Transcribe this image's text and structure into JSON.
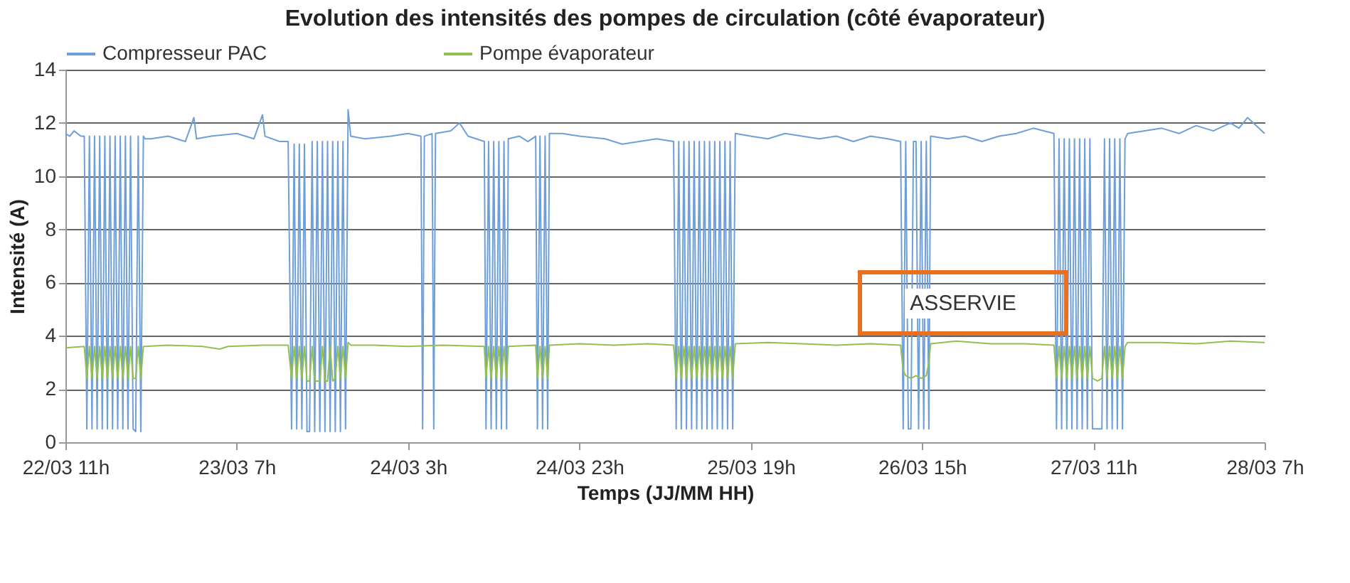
{
  "chart_data": {
    "type": "line",
    "title": "Evolution des intensités des pompes de circulation (côté  évaporateur)",
    "xlabel": "Temps (JJ/MM HH)",
    "ylabel": "Intensité (A)",
    "xlim": [
      "--03-22T11:00",
      "--03-28T07:00"
    ],
    "xticks": [
      {
        "value": "--03-22T11:00",
        "label": "22/03 11h"
      },
      {
        "value": "--03-23T07:00",
        "label": "23/03 7h"
      },
      {
        "value": "--03-24T03:00",
        "label": "24/03 3h"
      },
      {
        "value": "--03-24T23:00",
        "label": "24/03 23h"
      },
      {
        "value": "--03-25T19:00",
        "label": "25/03 19h"
      },
      {
        "value": "--03-26T15:00",
        "label": "26/03 15h"
      },
      {
        "value": "--03-27T11:00",
        "label": "27/03 11h"
      },
      {
        "value": "--03-28T07:00",
        "label": "28/03 7h"
      }
    ],
    "ylim": [
      0,
      14
    ],
    "yticks": [
      0,
      2,
      4,
      6,
      8,
      10,
      12,
      14
    ],
    "grid": "y",
    "legend": "top",
    "marker": "none",
    "line_style": "solid",
    "annotations": [
      "ASSERVIE"
    ],
    "series": [
      {
        "name": "Compresseur PAC",
        "color": "#6f9fd8",
        "x": [
          "--03-22T11:00",
          "--03-22T11:30",
          "--03-22T12:00",
          "--03-22T12:48",
          "--03-22T13:12",
          "--03-22T13:30",
          "--03-22T13:48",
          "--03-22T14:06",
          "--03-22T14:24",
          "--03-22T14:42",
          "--03-22T15:00",
          "--03-22T15:18",
          "--03-22T15:36",
          "--03-22T15:54",
          "--03-22T16:12",
          "--03-22T16:30",
          "--03-22T16:48",
          "--03-22T17:06",
          "--03-22T17:24",
          "--03-22T17:42",
          "--03-22T18:00",
          "--03-22T18:18",
          "--03-22T18:36",
          "--03-22T18:54",
          "--03-22T19:12",
          "--03-22T19:30",
          "--03-22T19:48",
          "--03-22T20:06",
          "--03-22T20:18",
          "--03-22T21:00",
          "--03-22T23:00",
          "--03-23T01:00",
          "--03-23T02:00",
          "--03-23T02:18",
          "--03-23T04:00",
          "--03-23T07:00",
          "--03-23T09:00",
          "--03-23T10:00",
          "--03-23T10:18",
          "--03-23T12:00",
          "--03-23T13:00",
          "--03-23T13:24",
          "--03-23T13:42",
          "--03-23T14:00",
          "--03-23T14:18",
          "--03-23T14:36",
          "--03-23T14:54",
          "--03-23T15:12",
          "--03-23T15:30",
          "--03-23T15:48",
          "--03-23T16:06",
          "--03-23T16:24",
          "--03-23T16:42",
          "--03-23T17:00",
          "--03-23T17:18",
          "--03-23T17:36",
          "--03-23T17:54",
          "--03-23T18:12",
          "--03-23T18:30",
          "--03-23T18:48",
          "--03-23T19:06",
          "--03-23T19:24",
          "--03-23T19:42",
          "--03-23T20:00",
          "--03-23T20:18",
          "--03-23T22:00",
          "--03-24T01:00",
          "--03-24T03:00",
          "--03-24T04:30",
          "--03-24T04:42",
          "--03-24T04:54",
          "--03-24T05:48",
          "--03-24T06:00",
          "--03-24T06:12",
          "--03-24T08:00",
          "--03-24T09:00",
          "--03-24T10:00",
          "--03-24T11:54",
          "--03-24T12:06",
          "--03-24T12:24",
          "--03-24T12:42",
          "--03-24T13:00",
          "--03-24T13:18",
          "--03-24T13:36",
          "--03-24T13:54",
          "--03-24T14:12",
          "--03-24T14:30",
          "--03-24T14:42",
          "--03-24T16:00",
          "--03-24T17:00",
          "--03-24T17:54",
          "--03-24T18:06",
          "--03-24T18:24",
          "--03-24T18:42",
          "--03-24T19:00",
          "--03-24T19:18",
          "--03-24T19:30",
          "--03-24T21:00",
          "--03-24T23:00",
          "--03-25T02:00",
          "--03-25T04:00",
          "--03-25T06:00",
          "--03-25T08:00",
          "--03-25T10:00",
          "--03-25T10:18",
          "--03-25T10:36",
          "--03-25T10:54",
          "--03-25T11:12",
          "--03-25T11:30",
          "--03-25T11:48",
          "--03-25T12:06",
          "--03-25T12:24",
          "--03-25T12:42",
          "--03-25T13:00",
          "--03-25T13:18",
          "--03-25T13:36",
          "--03-25T13:54",
          "--03-25T14:12",
          "--03-25T14:30",
          "--03-25T14:48",
          "--03-25T15:06",
          "--03-25T15:24",
          "--03-25T15:42",
          "--03-25T16:00",
          "--03-25T16:18",
          "--03-25T16:36",
          "--03-25T16:54",
          "--03-25T17:12",
          "--03-25T19:00",
          "--03-25T21:00",
          "--03-25T23:00",
          "--03-26T01:00",
          "--03-26T03:00",
          "--03-26T05:00",
          "--03-26T07:00",
          "--03-26T09:00",
          "--03-26T11:00",
          "--03-26T12:30",
          "--03-26T12:48",
          "--03-26T13:06",
          "--03-26T13:24",
          "--03-26T13:42",
          "--03-26T14:00",
          "--03-26T14:18",
          "--03-26T14:36",
          "--03-26T14:54",
          "--03-26T15:12",
          "--03-26T15:30",
          "--03-26T15:48",
          "--03-26T16:00",
          "--03-26T18:00",
          "--03-26T20:00",
          "--03-26T22:00",
          "--03-27T00:00",
          "--03-27T02:00",
          "--03-27T04:00",
          "--03-27T06:24",
          "--03-27T06:42",
          "--03-27T07:00",
          "--03-27T07:18",
          "--03-27T07:36",
          "--03-27T07:54",
          "--03-27T08:12",
          "--03-27T08:30",
          "--03-27T08:48",
          "--03-27T09:06",
          "--03-27T09:24",
          "--03-27T09:42",
          "--03-27T10:00",
          "--03-27T10:18",
          "--03-27T10:36",
          "--03-27T10:54",
          "--03-27T11:30",
          "--03-27T12:00",
          "--03-27T12:18",
          "--03-27T12:36",
          "--03-27T12:54",
          "--03-27T13:12",
          "--03-27T13:30",
          "--03-27T13:48",
          "--03-27T14:06",
          "--03-27T14:24",
          "--03-27T14:42",
          "--03-27T15:00",
          "--03-27T17:00",
          "--03-27T19:00",
          "--03-27T21:00",
          "--03-27T23:00",
          "--03-28T01:00",
          "--03-28T03:00",
          "--03-28T04:00",
          "--03-28T05:00",
          "--03-28T07:00"
        ],
        "values": [
          11.6,
          11.5,
          11.7,
          11.5,
          11.5,
          0.5,
          11.5,
          0.5,
          11.5,
          0.5,
          11.5,
          0.5,
          11.5,
          0.5,
          11.5,
          0.5,
          11.5,
          0.5,
          11.5,
          0.5,
          11.5,
          0.5,
          11.5,
          0.5,
          0.4,
          11.5,
          0.4,
          11.5,
          11.4,
          11.4,
          11.5,
          11.3,
          12.2,
          11.4,
          11.5,
          11.6,
          11.4,
          12.3,
          11.5,
          11.3,
          11.3,
          0.5,
          11.2,
          0.5,
          11.2,
          0.5,
          11.2,
          0.4,
          0.4,
          11.3,
          0.4,
          11.3,
          0.4,
          11.3,
          0.4,
          11.3,
          0.4,
          11.3,
          0.4,
          11.3,
          0.4,
          11.3,
          0.5,
          12.5,
          11.5,
          11.4,
          11.5,
          11.6,
          11.5,
          0.5,
          11.5,
          11.6,
          0.5,
          11.6,
          11.7,
          12.0,
          11.5,
          11.3,
          0.5,
          11.3,
          0.5,
          11.3,
          0.5,
          11.3,
          0.5,
          11.3,
          0.5,
          11.4,
          11.5,
          11.3,
          11.5,
          0.5,
          11.5,
          0.5,
          11.5,
          0.5,
          11.6,
          11.6,
          11.5,
          11.4,
          11.2,
          11.3,
          11.4,
          11.3,
          0.5,
          11.3,
          0.5,
          11.3,
          0.5,
          11.3,
          0.5,
          11.3,
          0.5,
          11.3,
          0.5,
          11.3,
          0.5,
          11.3,
          0.5,
          11.3,
          0.5,
          11.3,
          0.5,
          11.3,
          0.5,
          11.3,
          0.5,
          11.6,
          11.5,
          11.4,
          11.6,
          11.5,
          11.4,
          11.5,
          11.3,
          11.5,
          11.4,
          11.3,
          0.5,
          11.3,
          0.5,
          0.5,
          11.3,
          11.3,
          0.5,
          11.3,
          0.5,
          11.3,
          0.5,
          11.5,
          11.4,
          11.5,
          11.3,
          11.5,
          11.6,
          11.8,
          11.6,
          0.5,
          11.4,
          0.5,
          11.4,
          0.5,
          11.4,
          0.5,
          11.4,
          0.5,
          11.4,
          0.5,
          11.4,
          0.5,
          11.4,
          0.5,
          0.5,
          0.5,
          11.4,
          0.5,
          11.4,
          0.5,
          11.4,
          0.5,
          11.4,
          0.5,
          11.4,
          11.6,
          11.7,
          11.8,
          11.6,
          11.9,
          11.7,
          12.0,
          11.8,
          12.2,
          11.6
        ]
      },
      {
        "name": "Pompe évaporateur",
        "color": "#92c050",
        "x": [
          "--03-22T11:00",
          "--03-22T13:12",
          "--03-22T13:30",
          "--03-22T13:48",
          "--03-22T14:06",
          "--03-22T14:24",
          "--03-22T14:42",
          "--03-22T15:00",
          "--03-22T15:18",
          "--03-22T15:36",
          "--03-22T15:54",
          "--03-22T16:12",
          "--03-22T16:30",
          "--03-22T16:48",
          "--03-22T17:06",
          "--03-22T17:24",
          "--03-22T17:42",
          "--03-22T18:00",
          "--03-22T18:18",
          "--03-22T18:36",
          "--03-22T18:54",
          "--03-22T19:12",
          "--03-22T19:30",
          "--03-22T19:48",
          "--03-22T20:06",
          "--03-22T20:18",
          "--03-22T23:00",
          "--03-23T03:00",
          "--03-23T05:00",
          "--03-23T06:00",
          "--03-23T10:00",
          "--03-23T13:00",
          "--03-23T13:24",
          "--03-23T13:42",
          "--03-23T14:00",
          "--03-23T14:18",
          "--03-23T14:36",
          "--03-23T14:54",
          "--03-23T15:12",
          "--03-23T15:30",
          "--03-23T15:48",
          "--03-23T16:06",
          "--03-23T16:24",
          "--03-23T16:42",
          "--03-23T17:00",
          "--03-23T17:18",
          "--03-23T17:36",
          "--03-23T17:54",
          "--03-23T18:12",
          "--03-23T18:30",
          "--03-23T18:48",
          "--03-23T19:06",
          "--03-23T19:24",
          "--03-23T19:42",
          "--03-23T20:00",
          "--03-23T20:18",
          "--03-23T23:00",
          "--03-24T03:00",
          "--03-24T07:00",
          "--03-24T11:54",
          "--03-24T12:06",
          "--03-24T12:24",
          "--03-24T12:42",
          "--03-24T13:00",
          "--03-24T13:18",
          "--03-24T13:36",
          "--03-24T13:54",
          "--03-24T14:12",
          "--03-24T14:30",
          "--03-24T14:42",
          "--03-24T17:54",
          "--03-24T18:06",
          "--03-24T18:24",
          "--03-24T18:42",
          "--03-24T19:00",
          "--03-24T19:18",
          "--03-24T19:30",
          "--03-24T23:00",
          "--03-25T03:00",
          "--03-25T07:00",
          "--03-25T10:00",
          "--03-25T10:18",
          "--03-25T10:36",
          "--03-25T10:54",
          "--03-25T11:12",
          "--03-25T11:30",
          "--03-25T11:48",
          "--03-25T12:06",
          "--03-25T12:24",
          "--03-25T12:42",
          "--03-25T13:00",
          "--03-25T13:18",
          "--03-25T13:36",
          "--03-25T13:54",
          "--03-25T14:12",
          "--03-25T14:30",
          "--03-25T14:48",
          "--03-25T15:06",
          "--03-25T15:24",
          "--03-25T15:42",
          "--03-25T16:00",
          "--03-25T16:18",
          "--03-25T16:36",
          "--03-25T16:54",
          "--03-25T17:12",
          "--03-25T21:00",
          "--03-26T01:00",
          "--03-26T05:00",
          "--03-26T09:00",
          "--03-26T12:30",
          "--03-26T12:48",
          "--03-26T13:06",
          "--03-26T13:42",
          "--03-26T14:18",
          "--03-26T14:54",
          "--03-26T15:30",
          "--03-26T15:48",
          "--03-26T16:00",
          "--03-26T19:00",
          "--03-26T23:00",
          "--03-27T03:00",
          "--03-27T06:24",
          "--03-27T06:42",
          "--03-27T07:00",
          "--03-27T07:18",
          "--03-27T07:36",
          "--03-27T07:54",
          "--03-27T08:12",
          "--03-27T08:30",
          "--03-27T08:48",
          "--03-27T09:06",
          "--03-27T09:24",
          "--03-27T09:42",
          "--03-27T10:00",
          "--03-27T10:18",
          "--03-27T10:36",
          "--03-27T10:54",
          "--03-27T11:30",
          "--03-27T12:00",
          "--03-27T12:18",
          "--03-27T12:36",
          "--03-27T12:54",
          "--03-27T13:12",
          "--03-27T13:30",
          "--03-27T13:48",
          "--03-27T14:06",
          "--03-27T14:24",
          "--03-27T14:42",
          "--03-27T15:00",
          "--03-27T19:00",
          "--03-27T23:00",
          "--03-28T03:00",
          "--03-28T07:00"
        ],
        "values": [
          3.55,
          3.6,
          2.4,
          3.6,
          2.4,
          3.6,
          2.4,
          3.6,
          2.4,
          3.6,
          2.4,
          3.6,
          2.4,
          3.6,
          2.4,
          3.6,
          2.4,
          3.6,
          2.4,
          3.6,
          2.4,
          2.4,
          3.6,
          2.4,
          3.6,
          3.6,
          3.65,
          3.6,
          3.5,
          3.6,
          3.65,
          3.65,
          2.4,
          3.6,
          2.4,
          3.6,
          2.4,
          3.6,
          2.3,
          2.3,
          3.6,
          2.3,
          2.3,
          2.3,
          3.6,
          2.3,
          2.3,
          3.6,
          2.3,
          2.4,
          3.6,
          2.4,
          3.6,
          2.4,
          3.75,
          3.65,
          3.65,
          3.6,
          3.65,
          3.6,
          2.4,
          3.6,
          2.4,
          3.6,
          2.4,
          3.6,
          2.4,
          3.6,
          2.4,
          3.6,
          3.65,
          2.4,
          3.6,
          2.4,
          3.6,
          2.4,
          3.65,
          3.7,
          3.65,
          3.7,
          3.65,
          2.4,
          3.6,
          2.4,
          3.6,
          2.4,
          3.6,
          2.4,
          3.6,
          2.4,
          3.6,
          2.4,
          3.6,
          2.4,
          3.6,
          2.4,
          3.6,
          2.4,
          3.6,
          2.4,
          3.6,
          2.4,
          3.6,
          2.4,
          3.7,
          3.75,
          3.7,
          3.65,
          3.7,
          3.65,
          2.7,
          2.5,
          2.4,
          2.5,
          2.4,
          2.5,
          3.0,
          3.7,
          3.8,
          3.7,
          3.7,
          3.65,
          2.4,
          3.6,
          2.4,
          3.6,
          2.4,
          3.6,
          2.4,
          3.6,
          2.4,
          3.6,
          2.4,
          3.6,
          2.4,
          3.6,
          2.4,
          2.3,
          2.4,
          3.6,
          2.4,
          3.6,
          2.4,
          3.6,
          2.4,
          3.6,
          2.4,
          3.6,
          3.75,
          3.75,
          3.7,
          3.8,
          3.75
        ]
      }
    ]
  }
}
